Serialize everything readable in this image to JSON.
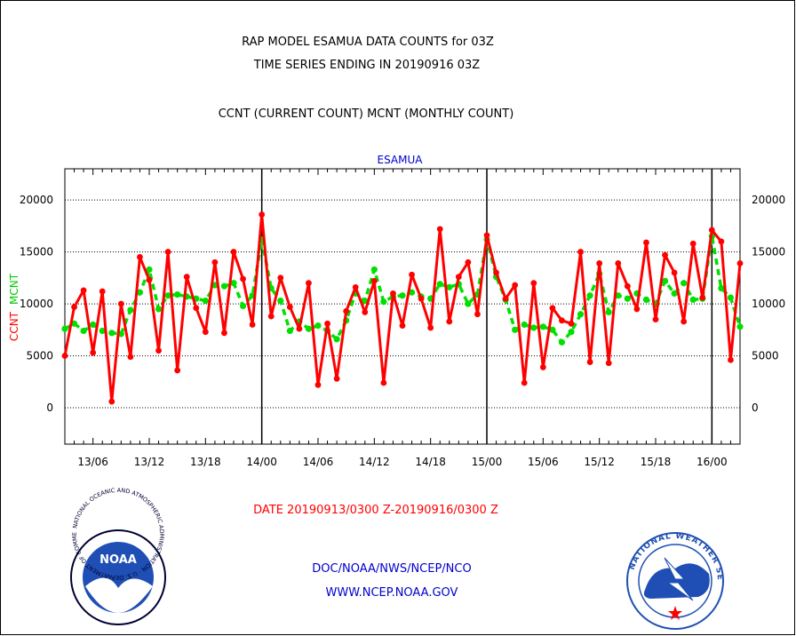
{
  "titles": {
    "line1": "RAP MODEL ESAMUA DATA COUNTS for 03Z",
    "line2": "TIME SERIES ENDING IN 20190916 03Z",
    "line3": "CCNT (CURRENT COUNT) MCNT (MONTHLY COUNT)"
  },
  "footer": {
    "date_range": "DATE 20190913/0300 Z-20190916/0300 Z",
    "org": "DOC/NOAA/NWS/NCEP/NCO",
    "url": "WWW.NCEP.NOAA.GOV"
  },
  "logos": {
    "noaa_label": "NOAA",
    "noaa_ring_text": "NATIONAL OCEANIC AND ATMOSPHERIC ADMINISTRATION · U.S. DEPARTMENT OF COMMERCE",
    "nws_ring_text": "NATIONAL WEATHER SERVICE"
  },
  "colors": {
    "ccnt": "#ff0000",
    "mcnt": "#00e000",
    "subtitle": "#0000cc",
    "footer_blue": "#0000cc",
    "footer_red": "#ff0000"
  },
  "chart_data": {
    "type": "line",
    "subtitle": "ESAMUA",
    "ylabel_parts": [
      "CCNT",
      "MCNT"
    ],
    "ylim": [
      -3500,
      23000
    ],
    "yticks": [
      0,
      5000,
      10000,
      15000,
      20000
    ],
    "xlim": [
      0,
      72
    ],
    "xticks": [
      {
        "label": "13/06",
        "x": 3
      },
      {
        "label": "13/12",
        "x": 9
      },
      {
        "label": "13/18",
        "x": 15
      },
      {
        "label": "14/00",
        "x": 21
      },
      {
        "label": "14/06",
        "x": 27
      },
      {
        "label": "14/12",
        "x": 33
      },
      {
        "label": "14/18",
        "x": 39
      },
      {
        "label": "15/00",
        "x": 45
      },
      {
        "label": "15/06",
        "x": 51
      },
      {
        "label": "15/12",
        "x": 57
      },
      {
        "label": "15/18",
        "x": 63
      },
      {
        "label": "16/00",
        "x": 69
      }
    ],
    "day_boundaries": [
      21,
      45,
      69
    ],
    "series": [
      {
        "name": "CCNT",
        "values": [
          5000,
          9700,
          11300,
          5300,
          11200,
          600,
          10000,
          4900,
          14500,
          12300,
          5500,
          15000,
          3600,
          12600,
          9600,
          7300,
          14000,
          7200,
          15000,
          12400,
          8000,
          18600,
          8800,
          12500,
          9700,
          7600,
          12000,
          2200,
          8100,
          2800,
          9300,
          11600,
          9200,
          12200,
          2400,
          11000,
          7900,
          12800,
          10500,
          7700,
          17200,
          8300,
          12600,
          14000,
          9000,
          16600,
          13000,
          10500,
          11800,
          2400,
          12000,
          3900,
          9600,
          8400,
          8100,
          15000,
          4400,
          13900,
          4300,
          13900,
          11700,
          9500,
          15900,
          8500,
          14700,
          13000,
          8300,
          15800,
          10600,
          17100,
          16000,
          4600,
          13900
        ]
      },
      {
        "name": "MCNT",
        "values": [
          7600,
          8100,
          7400,
          8000,
          7400,
          7200,
          7100,
          9400,
          11100,
          13300,
          9500,
          10800,
          10900,
          10700,
          10500,
          10300,
          11800,
          11700,
          12000,
          9800,
          10800,
          16200,
          11500,
          10300,
          7400,
          8300,
          7600,
          7900,
          7400,
          6600,
          8400,
          11000,
          10300,
          13300,
          10200,
          10700,
          10800,
          11100,
          10700,
          10500,
          11900,
          11600,
          11900,
          10000,
          10900,
          16200,
          12600,
          10400,
          7500,
          8000,
          7700,
          7800,
          7500,
          6300,
          7300,
          9000,
          10800,
          12900,
          9200,
          10800,
          10500,
          11000,
          10400,
          10000,
          12200,
          11000,
          12000,
          10400,
          10500,
          16500,
          11500,
          10600,
          7800
        ]
      }
    ]
  }
}
